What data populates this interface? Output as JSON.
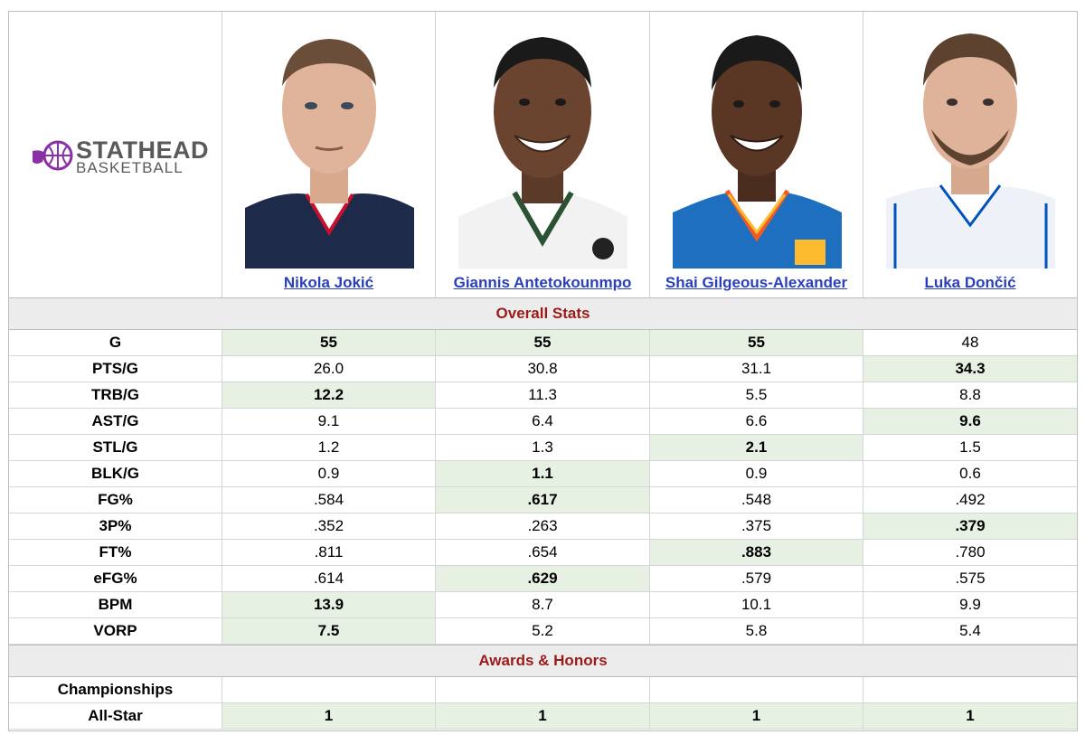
{
  "brand": {
    "top": "STATHEAD",
    "bottom": "BASKETBALL",
    "accent_color": "#8b2fa6"
  },
  "players": [
    {
      "name": "Nikola Jokić",
      "jersey": "#1d2a4a"
    },
    {
      "name": "Giannis Antetokounmpo",
      "jersey": "#f2f2f2"
    },
    {
      "name": "Shai Gilgeous-Alexander",
      "jersey": "#1f6fc1"
    },
    {
      "name": "Luka Dončić",
      "jersey": "#ffffff"
    }
  ],
  "sections": {
    "overall": "Overall Stats",
    "awards": "Awards & Honors"
  },
  "overall_rows": [
    {
      "label": "G",
      "values": [
        "55",
        "55",
        "55",
        "48"
      ],
      "best": [
        true,
        true,
        true,
        false
      ]
    },
    {
      "label": "PTS/G",
      "values": [
        "26.0",
        "30.8",
        "31.1",
        "34.3"
      ],
      "best": [
        false,
        false,
        false,
        true
      ]
    },
    {
      "label": "TRB/G",
      "values": [
        "12.2",
        "11.3",
        "5.5",
        "8.8"
      ],
      "best": [
        true,
        false,
        false,
        false
      ]
    },
    {
      "label": "AST/G",
      "values": [
        "9.1",
        "6.4",
        "6.6",
        "9.6"
      ],
      "best": [
        false,
        false,
        false,
        true
      ]
    },
    {
      "label": "STL/G",
      "values": [
        "1.2",
        "1.3",
        "2.1",
        "1.5"
      ],
      "best": [
        false,
        false,
        true,
        false
      ]
    },
    {
      "label": "BLK/G",
      "values": [
        "0.9",
        "1.1",
        "0.9",
        "0.6"
      ],
      "best": [
        false,
        true,
        false,
        false
      ]
    },
    {
      "label": "FG%",
      "values": [
        ".584",
        ".617",
        ".548",
        ".492"
      ],
      "best": [
        false,
        true,
        false,
        false
      ]
    },
    {
      "label": "3P%",
      "values": [
        ".352",
        ".263",
        ".375",
        ".379"
      ],
      "best": [
        false,
        false,
        false,
        true
      ]
    },
    {
      "label": "FT%",
      "values": [
        ".811",
        ".654",
        ".883",
        ".780"
      ],
      "best": [
        false,
        false,
        true,
        false
      ]
    },
    {
      "label": "eFG%",
      "values": [
        ".614",
        ".629",
        ".579",
        ".575"
      ],
      "best": [
        false,
        true,
        false,
        false
      ]
    },
    {
      "label": "BPM",
      "values": [
        "13.9",
        "8.7",
        "10.1",
        "9.9"
      ],
      "best": [
        true,
        false,
        false,
        false
      ]
    },
    {
      "label": "VORP",
      "values": [
        "7.5",
        "5.2",
        "5.8",
        "5.4"
      ],
      "best": [
        true,
        false,
        false,
        false
      ]
    }
  ],
  "award_rows": [
    {
      "label": "Championships",
      "values": [
        "",
        "",
        "",
        ""
      ],
      "best": [
        false,
        false,
        false,
        false
      ]
    },
    {
      "label": "All-Star",
      "values": [
        "1",
        "1",
        "1",
        "1"
      ],
      "best": [
        true,
        true,
        true,
        true
      ]
    }
  ],
  "colors": {
    "best_bg": "#e6f1e3",
    "section_text": "#9b1b1b",
    "link": "#2a3fb9"
  }
}
